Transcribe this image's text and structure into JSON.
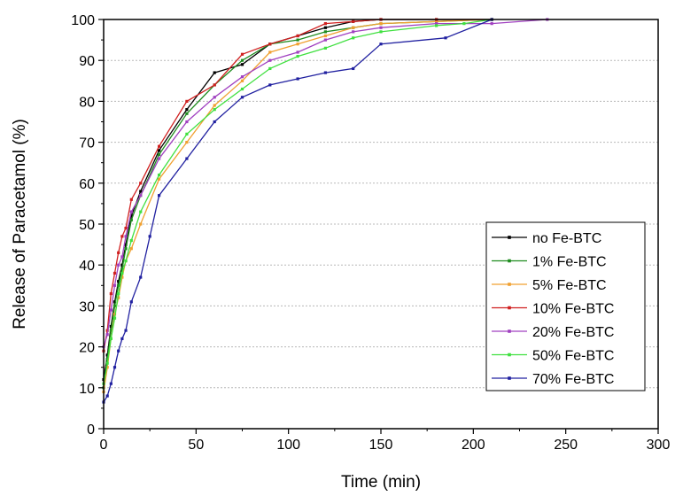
{
  "chart_data": {
    "type": "line",
    "xlabel": "Time (min)",
    "ylabel": "Release of Paracetamol (%)",
    "xlim": [
      0,
      300
    ],
    "ylim": [
      0,
      100
    ],
    "xticks": [
      0,
      50,
      100,
      150,
      200,
      250,
      300
    ],
    "yticks": [
      0,
      10,
      20,
      30,
      40,
      50,
      60,
      70,
      80,
      90,
      100
    ],
    "grid": "horizontal-dotted",
    "legend_position": "bottom-right",
    "series": [
      {
        "name": "no Fe-BTC",
        "color": "#000000",
        "points": [
          [
            0,
            12
          ],
          [
            2,
            18
          ],
          [
            4,
            25
          ],
          [
            6,
            31
          ],
          [
            8,
            36
          ],
          [
            10,
            40
          ],
          [
            12,
            45
          ],
          [
            15,
            52
          ],
          [
            20,
            58
          ],
          [
            30,
            68
          ],
          [
            45,
            78
          ],
          [
            60,
            87
          ],
          [
            75,
            89
          ],
          [
            90,
            94
          ],
          [
            105,
            96
          ],
          [
            120,
            98
          ],
          [
            135,
            99.5
          ],
          [
            150,
            100
          ],
          [
            180,
            100
          ],
          [
            210,
            100
          ]
        ]
      },
      {
        "name": "1% Fe-BTC",
        "color": "#1f8c1f",
        "points": [
          [
            0,
            10
          ],
          [
            2,
            17
          ],
          [
            4,
            24
          ],
          [
            6,
            30
          ],
          [
            8,
            35
          ],
          [
            10,
            39
          ],
          [
            12,
            44
          ],
          [
            15,
            51
          ],
          [
            20,
            57
          ],
          [
            30,
            67
          ],
          [
            45,
            77
          ],
          [
            60,
            84
          ],
          [
            75,
            90
          ],
          [
            90,
            94
          ],
          [
            105,
            95
          ],
          [
            120,
            97
          ],
          [
            135,
            98
          ],
          [
            150,
            99
          ],
          [
            180,
            99.5
          ],
          [
            210,
            100
          ]
        ]
      },
      {
        "name": "5% Fe-BTC",
        "color": "#f0a030",
        "points": [
          [
            0,
            9
          ],
          [
            2,
            15
          ],
          [
            4,
            22
          ],
          [
            6,
            28
          ],
          [
            8,
            32
          ],
          [
            10,
            37
          ],
          [
            12,
            41
          ],
          [
            15,
            44
          ],
          [
            20,
            50
          ],
          [
            30,
            61
          ],
          [
            45,
            70
          ],
          [
            60,
            79
          ],
          [
            75,
            85
          ],
          [
            90,
            92
          ],
          [
            105,
            94
          ],
          [
            120,
            96
          ],
          [
            135,
            98
          ],
          [
            150,
            99
          ],
          [
            180,
            99.5
          ],
          [
            210,
            100
          ]
        ]
      },
      {
        "name": "10% Fe-BTC",
        "color": "#d02020",
        "points": [
          [
            0,
            19
          ],
          [
            2,
            24
          ],
          [
            4,
            33
          ],
          [
            6,
            38
          ],
          [
            8,
            43
          ],
          [
            10,
            47
          ],
          [
            12,
            49
          ],
          [
            15,
            56
          ],
          [
            20,
            60
          ],
          [
            30,
            69
          ],
          [
            45,
            80
          ],
          [
            60,
            84
          ],
          [
            75,
            91.5
          ],
          [
            90,
            94
          ],
          [
            105,
            96
          ],
          [
            120,
            99
          ],
          [
            135,
            99.5
          ],
          [
            150,
            100
          ],
          [
            180,
            100
          ],
          [
            210,
            100
          ]
        ]
      },
      {
        "name": "20% Fe-BTC",
        "color": "#a040c0",
        "points": [
          [
            0,
            20
          ],
          [
            2,
            23
          ],
          [
            4,
            29
          ],
          [
            6,
            35
          ],
          [
            8,
            40
          ],
          [
            10,
            42
          ],
          [
            12,
            47
          ],
          [
            15,
            53
          ],
          [
            20,
            57
          ],
          [
            30,
            66
          ],
          [
            45,
            75
          ],
          [
            60,
            81
          ],
          [
            75,
            86
          ],
          [
            90,
            90
          ],
          [
            105,
            92
          ],
          [
            120,
            95
          ],
          [
            135,
            97
          ],
          [
            150,
            98
          ],
          [
            180,
            99
          ],
          [
            210,
            99
          ],
          [
            240,
            100
          ]
        ]
      },
      {
        "name": "50% Fe-BTC",
        "color": "#40e040",
        "points": [
          [
            0,
            11
          ],
          [
            2,
            16
          ],
          [
            4,
            22
          ],
          [
            6,
            27
          ],
          [
            8,
            33
          ],
          [
            10,
            38
          ],
          [
            12,
            41
          ],
          [
            15,
            46
          ],
          [
            20,
            53
          ],
          [
            30,
            62
          ],
          [
            45,
            72
          ],
          [
            60,
            78
          ],
          [
            75,
            83
          ],
          [
            90,
            88
          ],
          [
            105,
            91
          ],
          [
            120,
            93
          ],
          [
            135,
            95.5
          ],
          [
            150,
            97
          ],
          [
            180,
            98.5
          ],
          [
            195,
            99
          ],
          [
            210,
            100
          ]
        ]
      },
      {
        "name": "70% Fe-BTC",
        "color": "#2020a0",
        "points": [
          [
            0,
            6.5
          ],
          [
            2,
            8
          ],
          [
            4,
            11
          ],
          [
            6,
            15
          ],
          [
            8,
            19
          ],
          [
            10,
            22
          ],
          [
            12,
            24
          ],
          [
            15,
            31
          ],
          [
            20,
            37
          ],
          [
            25,
            47
          ],
          [
            30,
            57
          ],
          [
            45,
            66
          ],
          [
            60,
            75
          ],
          [
            75,
            81
          ],
          [
            90,
            84
          ],
          [
            105,
            85.5
          ],
          [
            120,
            87
          ],
          [
            135,
            88
          ],
          [
            150,
            94
          ],
          [
            185,
            95.5
          ],
          [
            210,
            100
          ]
        ]
      }
    ]
  }
}
